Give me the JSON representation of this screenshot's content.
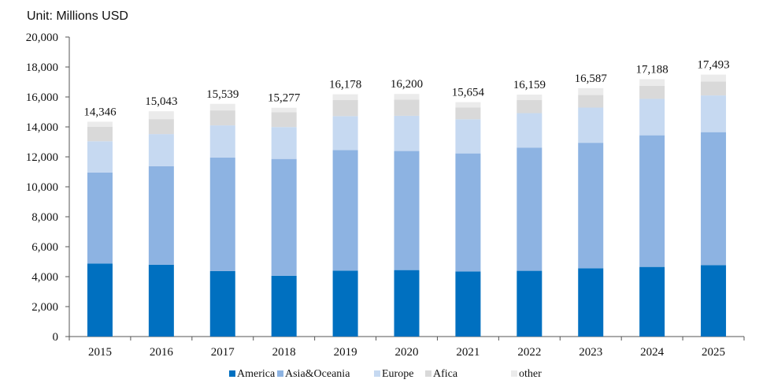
{
  "unit_label": "Unit: Millions USD",
  "chart_data": {
    "type": "bar",
    "stacked": true,
    "title": "",
    "xlabel": "",
    "ylabel": "",
    "ylim": [
      0,
      20000
    ],
    "yticks": [
      0,
      2000,
      4000,
      6000,
      8000,
      10000,
      12000,
      14000,
      16000,
      18000,
      20000
    ],
    "ytick_labels": [
      "0",
      "2,000",
      "4,000",
      "6,000",
      "8,000",
      "10,000",
      "12,000",
      "14,000",
      "16,000",
      "18,000",
      "20,000"
    ],
    "grid": false,
    "legend_position": "bottom",
    "categories": [
      "2015",
      "2016",
      "2017",
      "2018",
      "2019",
      "2020",
      "2021",
      "2022",
      "2023",
      "2024",
      "2025"
    ],
    "totals": [
      14346,
      15043,
      15539,
      15277,
      16178,
      16200,
      15654,
      16159,
      16587,
      17188,
      17493
    ],
    "total_labels": [
      "14,346",
      "15,043",
      "15,539",
      "15,277",
      "16,178",
      "16,200",
      "15,654",
      "16,159",
      "16,587",
      "17,188",
      "17,493"
    ],
    "series": [
      {
        "name": "America",
        "color": "#0070c0",
        "values": [
          4880,
          4800,
          4370,
          4060,
          4400,
          4440,
          4350,
          4390,
          4560,
          4650,
          4770
        ]
      },
      {
        "name": "Asia&Oceania",
        "color": "#8db3e2",
        "values": [
          6070,
          6570,
          7580,
          7800,
          8050,
          7950,
          7880,
          8230,
          8380,
          8790,
          8880
        ]
      },
      {
        "name": "Europe",
        "color": "#c6d9f1",
        "values": [
          2090,
          2150,
          2150,
          2130,
          2270,
          2350,
          2280,
          2300,
          2350,
          2430,
          2450
        ]
      },
      {
        "name": "Afica",
        "color": "#d9d9d9",
        "values": [
          960,
          1000,
          1000,
          990,
          1070,
          1080,
          780,
          870,
          840,
          880,
          930
        ]
      },
      {
        "name": "other",
        "color": "#ebebeb",
        "values": [
          346,
          523,
          439,
          297,
          388,
          380,
          364,
          369,
          457,
          438,
          463
        ]
      }
    ]
  }
}
